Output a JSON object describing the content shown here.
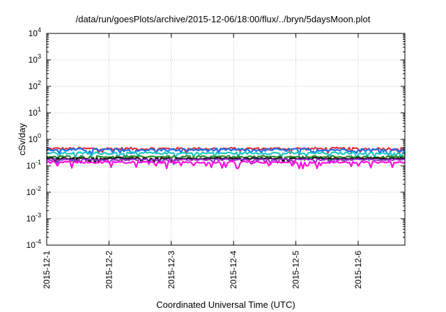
{
  "chart_data": {
    "type": "line",
    "title": "/data/run/goesPlots/archive/2015-12-06/18:00/flux/../bryn/5daysMoon.plot",
    "xlabel": "Coordinated Universal Time (UTC)",
    "ylabel": "cSv/day",
    "yscale": "log",
    "ylim": [
      0.0001,
      10000
    ],
    "y_ticks": [
      {
        "base": "10",
        "exp": "4"
      },
      {
        "base": "10",
        "exp": "3"
      },
      {
        "base": "10",
        "exp": "2"
      },
      {
        "base": "10",
        "exp": "1"
      },
      {
        "base": "10",
        "exp": "0"
      },
      {
        "base": "10",
        "exp": "-1"
      },
      {
        "base": "10",
        "exp": "-2"
      },
      {
        "base": "10",
        "exp": "-3"
      },
      {
        "base": "10",
        "exp": "-4"
      }
    ],
    "x_range": [
      "2015-12-01",
      "2015-12-06T18:00"
    ],
    "x_ticks": [
      "2015-12-1",
      "2015-12-2",
      "2015-12-3",
      "2015-12-4",
      "2015-12-5",
      "2015-12-6"
    ],
    "grid": true,
    "series": [
      {
        "color": "#e0303a",
        "level": 0.44,
        "jitter": 0.12
      },
      {
        "color": "#1f6fe8",
        "level": 0.4,
        "jitter": 0.13
      },
      {
        "color": "#1ec8c8",
        "level": 0.3,
        "jitter": 0.1
      },
      {
        "color": "#2e8b2e",
        "level": 0.22,
        "jitter": 0.08
      },
      {
        "color": "#111111",
        "level": 0.19,
        "jitter": 0.07
      },
      {
        "color": "#9b30d0",
        "level": 0.17,
        "jitter": 0.07
      },
      {
        "color": "#ff10e0",
        "level": 0.135,
        "jitter": 0.09
      }
    ]
  }
}
